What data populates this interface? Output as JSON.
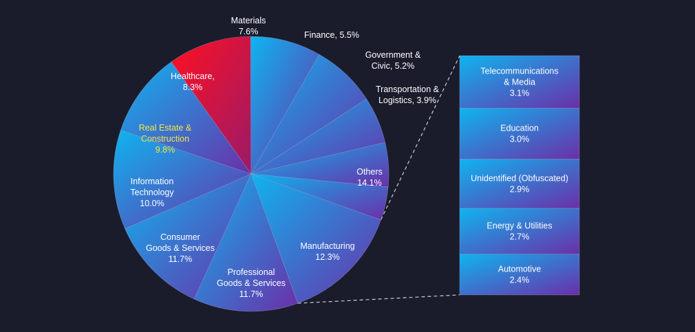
{
  "colors": {
    "background": "#1a1c2c",
    "gradient_start": "#0fb4f0",
    "gradient_end": "#6b2fa8",
    "highlight_start": "#ff1020",
    "highlight_end": "#9a1a6a",
    "highlight_text": "#f5e642",
    "stroke": "#9aa4c8",
    "connector": "#c9cde0"
  },
  "chart_data": {
    "type": "pie",
    "title": "",
    "unit": "%",
    "slices": [
      {
        "name": "Others",
        "lines": [
          "Others",
          "14.1%"
        ],
        "value": 14.1
      },
      {
        "name": "Manufacturing",
        "lines": [
          "Manufacturing",
          "12.3%"
        ],
        "value": 12.3
      },
      {
        "name": "Professional Goods & Services",
        "lines": [
          "Professional",
          "Goods & Services",
          "11.7%"
        ],
        "value": 11.7
      },
      {
        "name": "Consumer Goods & Services",
        "lines": [
          "Consumer",
          "Goods & Services",
          "11.7%"
        ],
        "value": 11.7
      },
      {
        "name": "Information Technology",
        "lines": [
          "Information",
          "Technology",
          "10.0%"
        ],
        "value": 10.0
      },
      {
        "name": "Real Estate & Construction",
        "lines": [
          "Real Estate &",
          "Construction",
          "9.8%"
        ],
        "value": 9.8,
        "highlight": true
      },
      {
        "name": "Healthcare",
        "lines": [
          "Healthcare,",
          "8.3%"
        ],
        "value": 8.3
      },
      {
        "name": "Materials",
        "lines": [
          "Materials",
          "7.6%"
        ],
        "value": 7.6
      },
      {
        "name": "Finance",
        "lines": [
          "Finance, 5.5%"
        ],
        "value": 5.5
      },
      {
        "name": "Government & Civic",
        "lines": [
          "Government &",
          "Civic, 5.2%"
        ],
        "value": 5.2
      },
      {
        "name": "Transportation & Logistics",
        "lines": [
          "Transportation &",
          "Logistics, 3.9%"
        ],
        "value": 3.9
      }
    ],
    "others_breakdown": {
      "type": "stacked-bar",
      "parent": "Others",
      "items": [
        {
          "name": "Telecommunications & Media",
          "lines": [
            "Telecommunications",
            "& Media",
            "3.1%"
          ],
          "value": 3.1
        },
        {
          "name": "Education",
          "lines": [
            "Education",
            "3.0%"
          ],
          "value": 3.0
        },
        {
          "name": "Unidentified (Obfuscated)",
          "lines": [
            "Unidentified (Obfuscated)",
            "2.9%"
          ],
          "value": 2.9
        },
        {
          "name": "Energy & Utilities",
          "lines": [
            "Energy & Utilities",
            "2.7%"
          ],
          "value": 2.7
        },
        {
          "name": "Automotive",
          "lines": [
            "Automotive",
            "2.4%"
          ],
          "value": 2.4
        }
      ]
    }
  }
}
